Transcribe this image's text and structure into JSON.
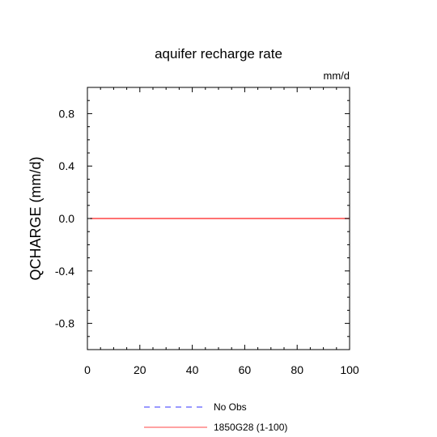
{
  "chart_data": {
    "type": "line",
    "title": "aquifer recharge rate",
    "units_label": "mm/d",
    "xlabel": "",
    "ylabel": "QCHARGE  (mm/d)",
    "xlim": [
      0,
      100
    ],
    "ylim": [
      -1.0,
      1.0
    ],
    "x_ticks": [
      0,
      20,
      40,
      60,
      80,
      100
    ],
    "x_tick_labels": [
      "0",
      "20",
      "40",
      "60",
      "80",
      "100"
    ],
    "y_ticks": [
      -0.8,
      -0.4,
      0.0,
      0.4,
      0.8
    ],
    "y_tick_labels": [
      "-0.8",
      "-0.4",
      "0.0",
      "0.4",
      "0.8"
    ],
    "grid": false,
    "zero_reference_line": true,
    "legend_position": "bottom-center",
    "series": [
      {
        "name": "No Obs",
        "color": "#3333ff",
        "dash": "dashed",
        "x": [],
        "y": []
      },
      {
        "name": "1850G28 (1-100)",
        "color": "#ff4444",
        "dash": "solid",
        "x": [
          1,
          100
        ],
        "y": [
          0.0,
          0.0
        ]
      }
    ]
  }
}
